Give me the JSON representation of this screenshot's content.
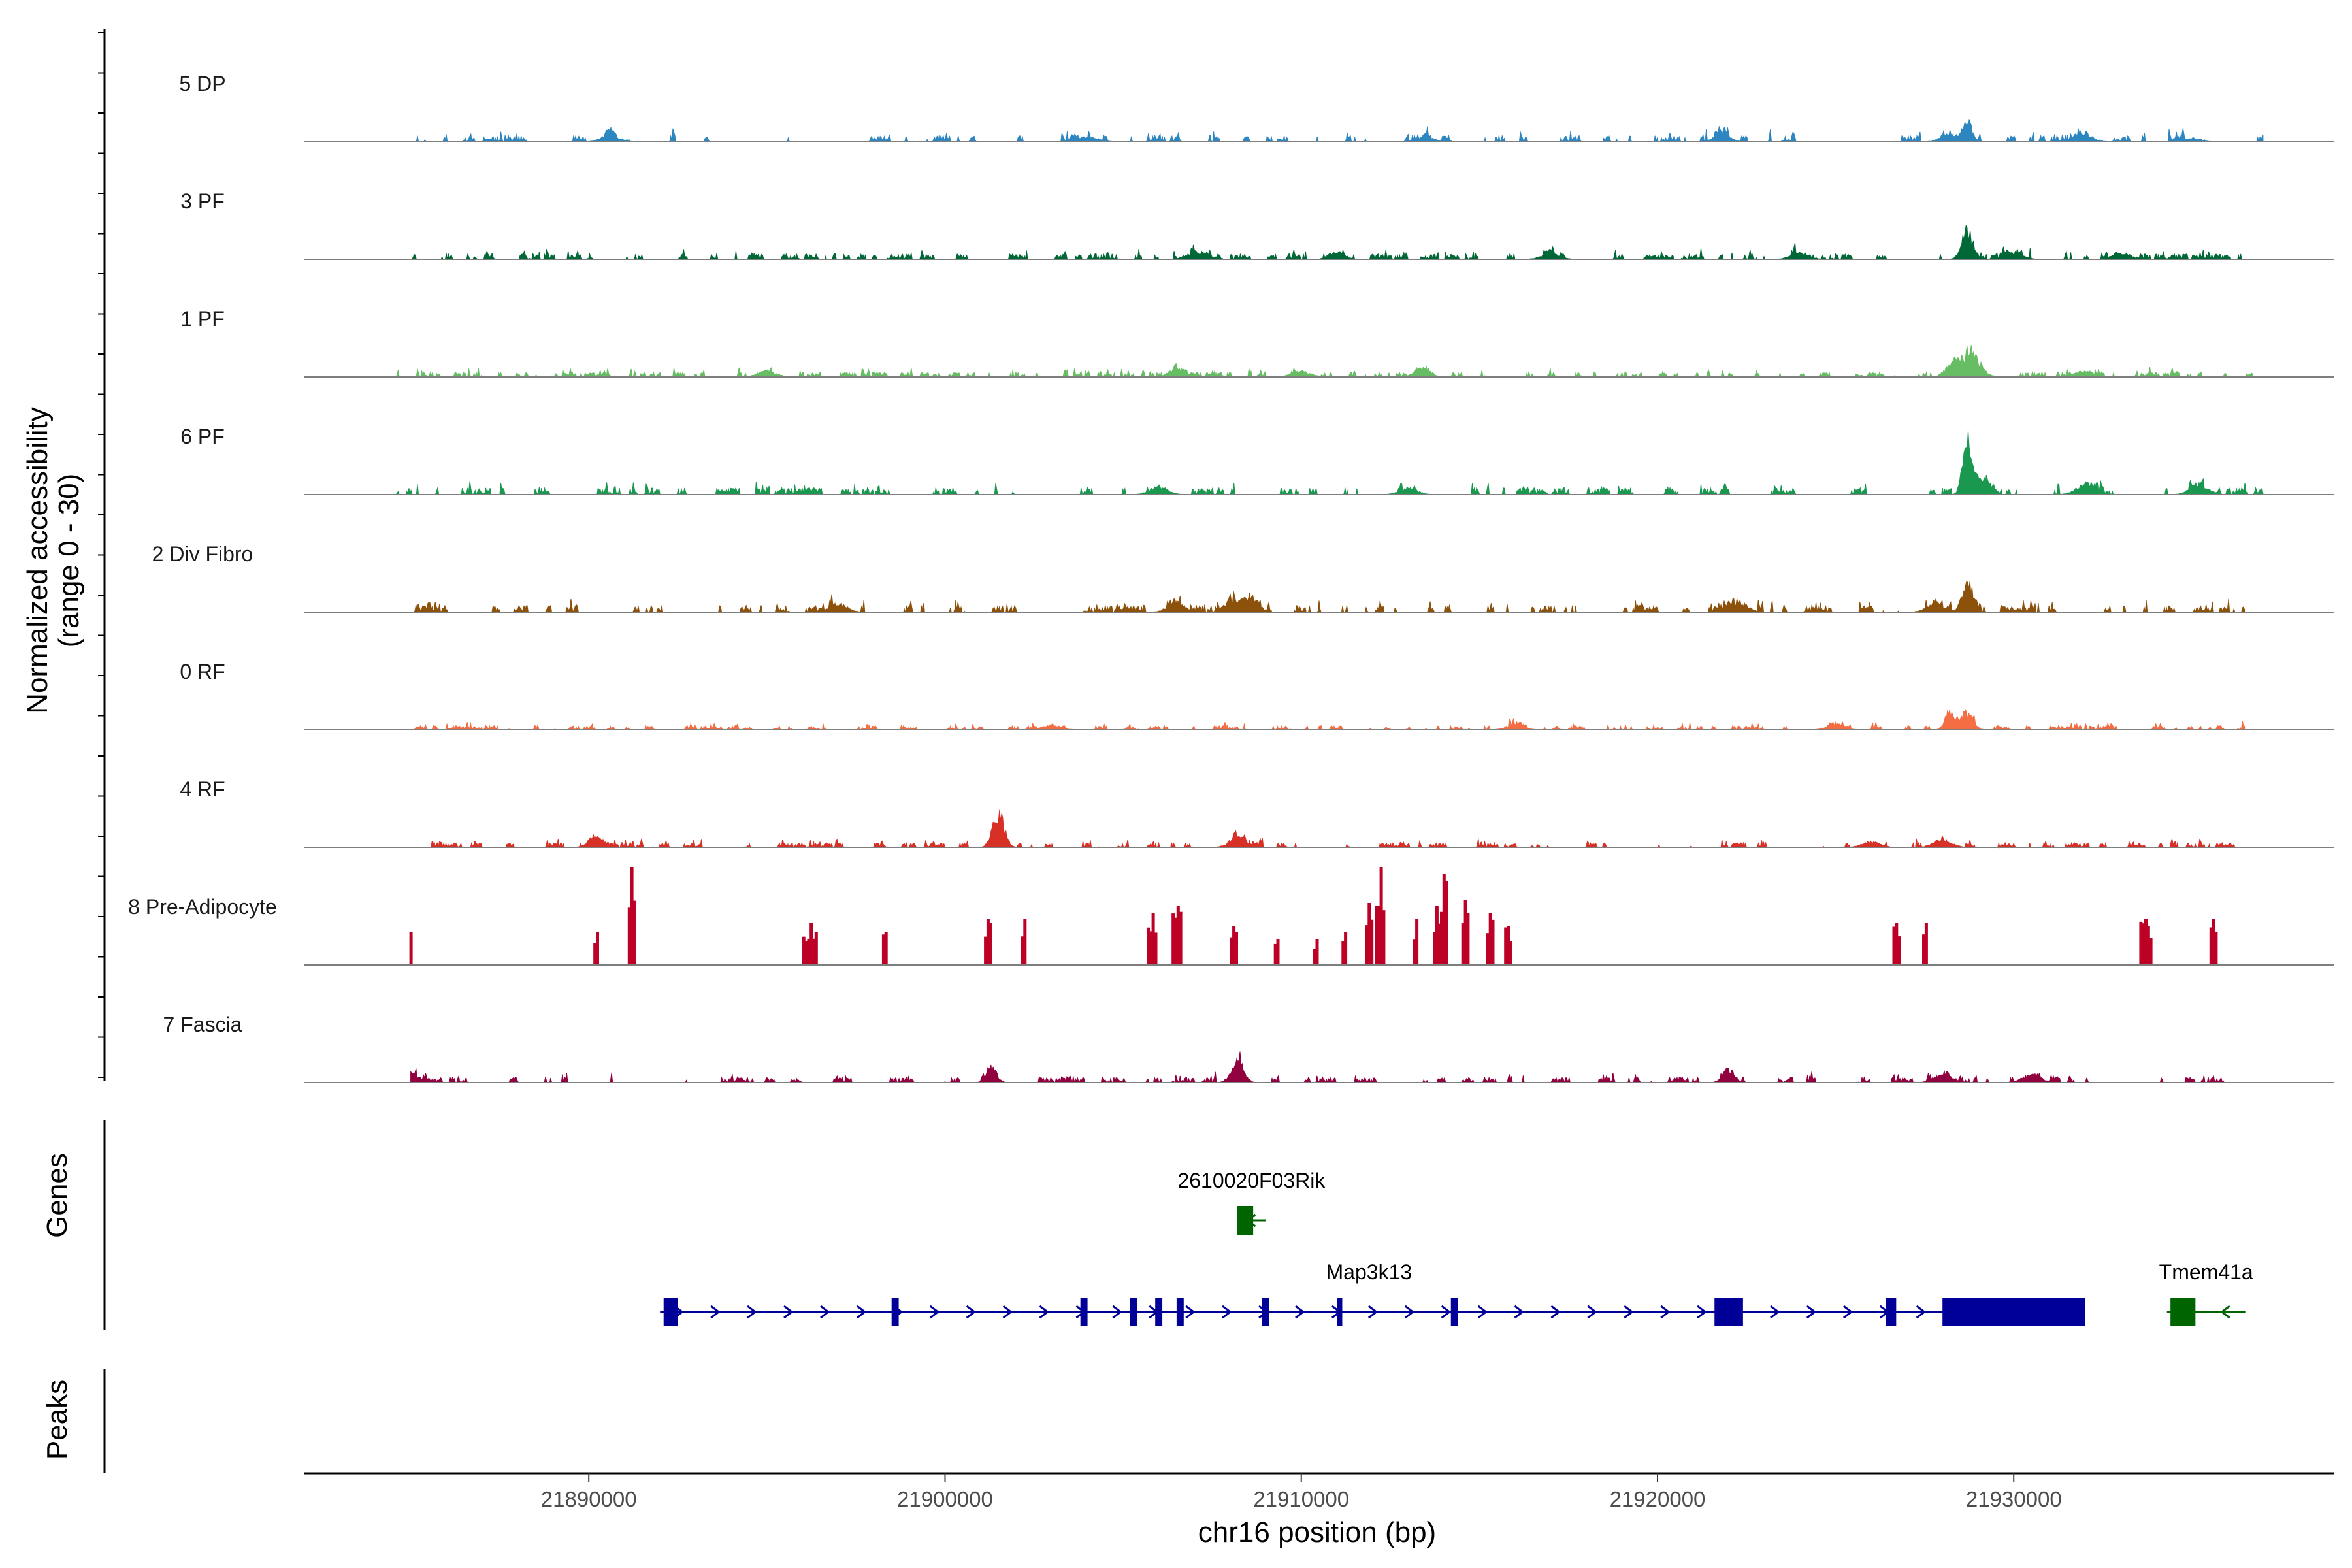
{
  "chart_data": {
    "type": "area",
    "title": "",
    "chromosome": "chr16",
    "xlabel": "chr16 position (bp)",
    "ylabel": "Normalized accessibility\n(range 0 - 30)",
    "xlim": [
      21882000,
      21939000
    ],
    "ylim": [
      0,
      30
    ],
    "x_ticks": [
      21890000,
      21900000,
      21910000,
      21920000,
      21930000
    ],
    "x_tick_labels": [
      "21890000",
      "21900000",
      "21910000",
      "21920000",
      "21930000"
    ],
    "panel_labels": {
      "genes": "Genes",
      "peaks": "Peaks"
    },
    "tracks": [
      {
        "name": "5 DP",
        "color": "#2E86C1",
        "style": "area",
        "seed": 11,
        "noise": 2.8,
        "density": 0.55,
        "range": [
          21884500,
          21937000
        ],
        "peaks": [
          [
            21928700,
            7.8,
            130
          ],
          [
            21890600,
            2.6,
            250
          ],
          [
            21904000,
            1.8,
            300
          ],
          [
            21913500,
            1.8,
            250
          ],
          [
            21921800,
            2.2,
            250
          ],
          [
            21928200,
            2.6,
            250
          ],
          [
            21932000,
            2.2,
            250
          ],
          [
            21935000,
            1.4,
            250
          ]
        ]
      },
      {
        "name": "3 PF",
        "color": "#006837",
        "style": "area",
        "seed": 23,
        "noise": 2.4,
        "density": 0.8,
        "range": [
          21884500,
          21937000
        ],
        "peaks": [
          [
            21928700,
            10.5,
            160
          ],
          [
            21911000,
            3.2,
            200
          ],
          [
            21907000,
            2.5,
            250
          ],
          [
            21917000,
            2.2,
            250
          ],
          [
            21924000,
            2.5,
            250
          ],
          [
            21930000,
            2.5,
            250
          ],
          [
            21933000,
            2.5,
            250
          ]
        ]
      },
      {
        "name": "1 PF",
        "color": "#66BD63",
        "style": "area",
        "seed": 37,
        "noise": 2.1,
        "density": 0.95,
        "range": [
          21884500,
          21937000
        ],
        "peaks": [
          [
            21928800,
            8.4,
            260
          ],
          [
            21928300,
            4.2,
            220
          ],
          [
            21906500,
            3.2,
            200
          ],
          [
            21913400,
            4.0,
            200
          ],
          [
            21910000,
            2.2,
            250
          ],
          [
            21895000,
            2.2,
            250
          ],
          [
            21932000,
            2.2,
            250
          ]
        ]
      },
      {
        "name": "6 PF",
        "color": "#1A9850",
        "style": "area",
        "seed": 49,
        "noise": 3.0,
        "density": 0.65,
        "range": [
          21884500,
          21937000
        ],
        "peaks": [
          [
            21928700,
            19.0,
            130
          ],
          [
            21929100,
            6.0,
            200
          ],
          [
            21913000,
            2.5,
            250
          ],
          [
            21906000,
            3.0,
            250
          ],
          [
            21932000,
            4.0,
            250
          ],
          [
            21935200,
            3.8,
            250
          ]
        ]
      },
      {
        "name": "2 Div Fibro",
        "color": "#8C510A",
        "style": "area",
        "seed": 61,
        "noise": 3.0,
        "density": 0.7,
        "range": [
          21885000,
          21936500
        ],
        "peaks": [
          [
            21928700,
            11.5,
            150
          ],
          [
            21908500,
            5.2,
            200
          ],
          [
            21908000,
            3.5,
            200
          ],
          [
            21906500,
            3.2,
            250
          ],
          [
            21922300,
            3.2,
            250
          ],
          [
            21927800,
            3.0,
            250
          ],
          [
            21897000,
            3.0,
            250
          ]
        ]
      },
      {
        "name": "0 RF",
        "color": "#F46D43",
        "style": "area",
        "seed": 73,
        "noise": 1.8,
        "density": 0.9,
        "range": [
          21885000,
          21936500
        ],
        "peaks": [
          [
            21928200,
            7.0,
            130
          ],
          [
            21928700,
            5.8,
            160
          ],
          [
            21903000,
            1.8,
            250
          ],
          [
            21916000,
            1.8,
            250
          ],
          [
            21925000,
            2.0,
            250
          ]
        ]
      },
      {
        "name": "4 RF",
        "color": "#D73027",
        "style": "area",
        "seed": 89,
        "noise": 2.0,
        "density": 0.7,
        "range": [
          21885000,
          21936500
        ],
        "peaks": [
          [
            21901500,
            13.0,
            160
          ],
          [
            21890200,
            4.2,
            200
          ],
          [
            21908200,
            3.6,
            220
          ],
          [
            21928000,
            2.8,
            250
          ],
          [
            21926000,
            2.0,
            250
          ]
        ]
      },
      {
        "name": "8 Pre-Adipocyte",
        "color": "#BD0026",
        "style": "bars",
        "seed": 97,
        "range": [
          21885000,
          21936500
        ],
        "clusters": [
          [
            21885000,
            10,
            1
          ],
          [
            21890200,
            10,
            2
          ],
          [
            21891200,
            30,
            3
          ],
          [
            21896200,
            13,
            6
          ],
          [
            21898300,
            10,
            2
          ],
          [
            21901200,
            14,
            3
          ],
          [
            21902200,
            14,
            2
          ],
          [
            21905800,
            16,
            4
          ],
          [
            21906500,
            18,
            4
          ],
          [
            21908100,
            12,
            3
          ],
          [
            21909300,
            8,
            2
          ],
          [
            21910400,
            8,
            2
          ],
          [
            21911200,
            10,
            2
          ],
          [
            21911900,
            19,
            3
          ],
          [
            21912200,
            30,
            4
          ],
          [
            21913200,
            14,
            2
          ],
          [
            21913800,
            18,
            3
          ],
          [
            21914000,
            28,
            3
          ],
          [
            21914600,
            20,
            3
          ],
          [
            21915300,
            16,
            3
          ],
          [
            21915800,
            12,
            3
          ],
          [
            21926700,
            13,
            3
          ],
          [
            21927500,
            13,
            2
          ],
          [
            21933700,
            14,
            5
          ],
          [
            21935600,
            14,
            3
          ]
        ]
      },
      {
        "name": "7 Fascia",
        "color": "#91003F",
        "style": "area",
        "seed": 103,
        "noise": 2.3,
        "density": 0.72,
        "range": [
          21885000,
          21936500
        ],
        "peaks": [
          [
            21908200,
            8.0,
            170
          ],
          [
            21901300,
            6.0,
            140
          ],
          [
            21885000,
            4.0,
            100
          ],
          [
            21922000,
            5.0,
            160
          ],
          [
            21928000,
            3.0,
            250
          ],
          [
            21930500,
            3.0,
            250
          ]
        ]
      }
    ],
    "genes": [
      {
        "name": "2610020F03Rik",
        "color": "#006400",
        "strand": "-",
        "start": 21908200,
        "end": 21909000,
        "row": 0,
        "exons": [
          [
            21908200,
            21908650
          ]
        ]
      },
      {
        "name": "Map3k13",
        "color": "#000099",
        "strand": "+",
        "start": 21892000,
        "end": 21932000,
        "row": 1,
        "exons": [
          [
            21892100,
            21892500
          ],
          [
            21898500,
            21898700
          ],
          [
            21903800,
            21904000
          ],
          [
            21905200,
            21905400
          ],
          [
            21905900,
            21906100
          ],
          [
            21906500,
            21906700
          ],
          [
            21908900,
            21909100
          ],
          [
            21911000,
            21911150
          ],
          [
            21914200,
            21914400
          ],
          [
            21921600,
            21922400
          ],
          [
            21926400,
            21926700
          ],
          [
            21928000,
            21932000
          ]
        ]
      },
      {
        "name": "Tmem41a",
        "color": "#006400",
        "strand": "-",
        "start": 21934300,
        "end": 21936500,
        "row": 1,
        "exons": [
          [
            21934400,
            21935100
          ]
        ]
      }
    ]
  }
}
